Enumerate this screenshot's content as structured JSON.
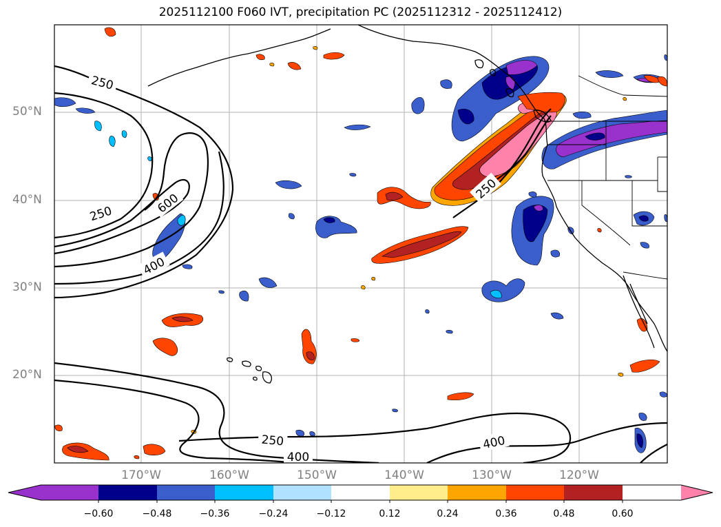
{
  "title": "2025112100 F060 IVT, precipitation PC (2025112312 - 2025112412)",
  "latitude_labels": [
    "50°N",
    "40°N",
    "30°N",
    "20°N"
  ],
  "longitude_labels": [
    "170°W",
    "160°W",
    "150°W",
    "140°W",
    "130°W",
    "120°W"
  ],
  "contour_labels": {
    "c250_nw": "250",
    "c250_w": "250",
    "c600": "600",
    "c400_w": "400",
    "c250_ar": "250",
    "c250_s": "250",
    "c400_s": "400",
    "c400_se": "400"
  },
  "colorbar": {
    "ticks": [
      "−0.60",
      "−0.48",
      "−0.36",
      "−0.24",
      "−0.12",
      "0.12",
      "0.24",
      "0.36",
      "0.48",
      "0.60"
    ],
    "colors": [
      "#9932cc",
      "#00008b",
      "#3a5fcd",
      "#00bfff",
      "#b0e2ff",
      "#ffffff",
      "#ffec8b",
      "#ffa500",
      "#ff4500",
      "#b22222",
      "#ff82ab"
    ]
  }
}
